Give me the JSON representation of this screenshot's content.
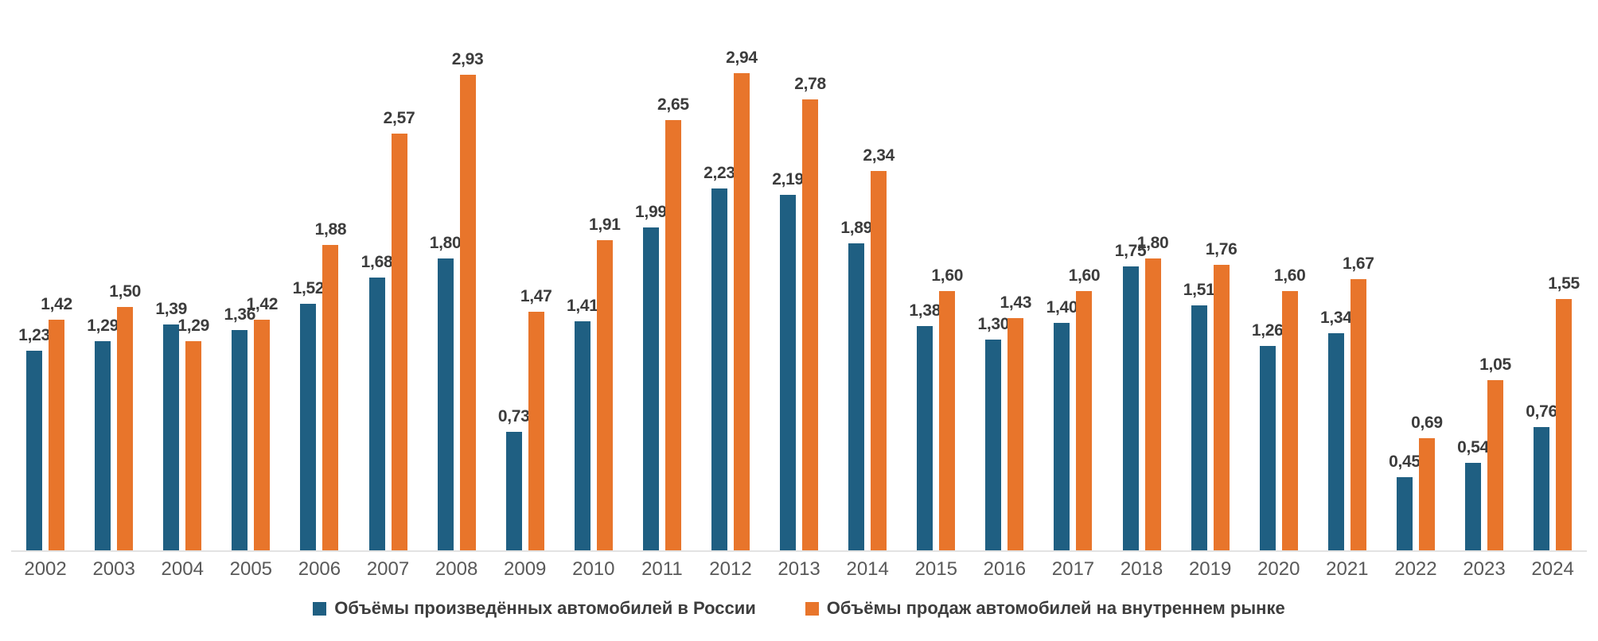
{
  "chart_data": {
    "type": "bar",
    "title": "",
    "xlabel": "",
    "ylabel": "",
    "categories": [
      "2002",
      "2003",
      "2004",
      "2005",
      "2006",
      "2007",
      "2008",
      "2009",
      "2010",
      "2011",
      "2012",
      "2013",
      "2014",
      "2015",
      "2016",
      "2017",
      "2018",
      "2019",
      "2020",
      "2021",
      "2022",
      "2023",
      "2024"
    ],
    "series": [
      {
        "name": "Объёмы произведённых автомобилей в России",
        "color": "#1F5F82",
        "values": [
          1.23,
          1.29,
          1.39,
          1.36,
          1.52,
          1.68,
          1.8,
          0.73,
          1.41,
          1.99,
          2.23,
          2.19,
          1.89,
          1.38,
          1.3,
          1.4,
          1.75,
          1.51,
          1.26,
          1.34,
          0.45,
          0.54,
          0.76
        ],
        "labels": [
          "1,23",
          "1,29",
          "1,39",
          "1,36",
          "1,52",
          "1,68",
          "1,80",
          "0,73",
          "1,41",
          "1,99",
          "2,23",
          "2,19",
          "1,89",
          "1,38",
          "1,30",
          "1,40",
          "1,75",
          "1,51",
          "1,26",
          "1,34",
          "0,45",
          "0,54",
          "0,76"
        ]
      },
      {
        "name": "Объёмы продаж автомобилей на внутреннем рынке",
        "color": "#E8752B",
        "values": [
          1.42,
          1.5,
          1.29,
          1.42,
          1.88,
          2.57,
          2.93,
          1.47,
          1.91,
          2.65,
          2.94,
          2.78,
          2.34,
          1.6,
          1.43,
          1.6,
          1.8,
          1.76,
          1.6,
          1.67,
          0.69,
          1.05,
          1.55
        ],
        "labels": [
          "1,42",
          "1,50",
          "1,29",
          "1,42",
          "1,88",
          "2,57",
          "2,93",
          "1,47",
          "1,91",
          "2,65",
          "2,94",
          "2,78",
          "2,34",
          "1,60",
          "1,43",
          "1,60",
          "1,80",
          "1,76",
          "1,60",
          "1,67",
          "0,69",
          "1,05",
          "1,55"
        ]
      }
    ],
    "ylim": [
      0,
      3.0
    ],
    "grid": "off",
    "legend_position": "bottom",
    "value_format": "decimal-comma"
  },
  "colors": {
    "background": "#FFFFFF",
    "axis_line": "#E3E3E3",
    "bar_label_text": "#3C3C3C",
    "axis_label_text": "#595959",
    "legend_text": "#3D3D3D"
  }
}
